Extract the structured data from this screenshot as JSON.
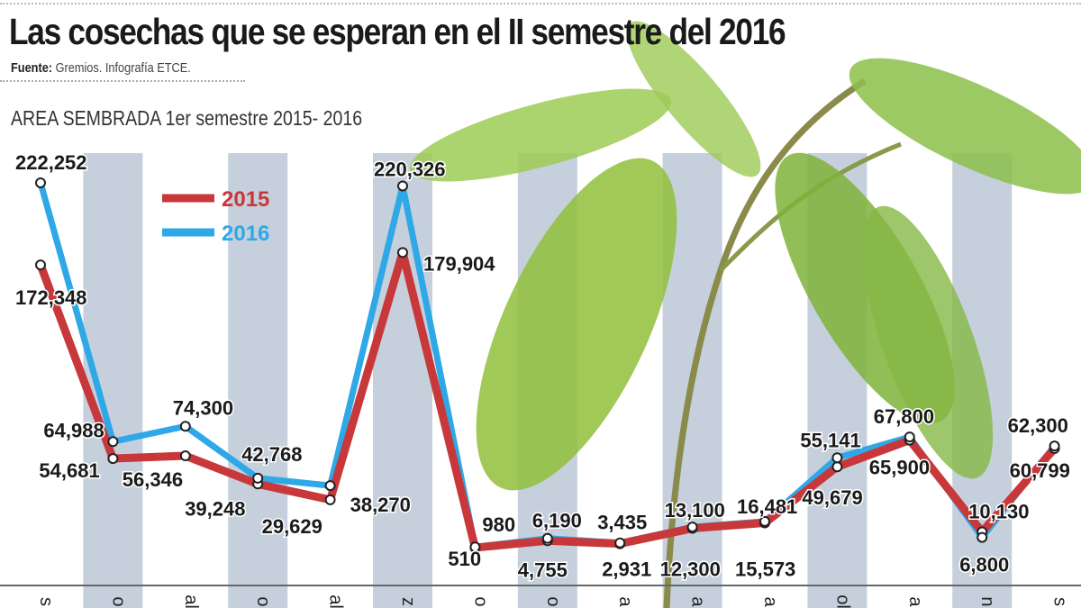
{
  "header": {
    "title": "Las cosechas que se esperan en el II semestre del 2016",
    "source_label": "Fuente:",
    "source_text": "Gremios. Infografía ETCE.",
    "subtitle": "AREA SEMBRADA 1er semestre 2015- 2016"
  },
  "chart_data": {
    "type": "line",
    "title": "AREA SEMBRADA 1er semestre 2015- 2016",
    "xlabel": "",
    "ylabel": "",
    "categories": [
      "s",
      "o",
      "al",
      "o",
      "al",
      "z",
      "o",
      "o",
      "a",
      "a",
      "a",
      "ol",
      "a",
      "n",
      "s"
    ],
    "ylim": [
      0,
      230000
    ],
    "grid": false,
    "legend_position": "top-left",
    "series": [
      {
        "name": "2015",
        "color": "#c8383a",
        "values": [
          172348,
          54681,
          56346,
          39248,
          29629,
          179904,
          510,
          4755,
          2931,
          12300,
          15573,
          49679,
          65900,
          10130,
          60799
        ],
        "labels": [
          "172,348",
          "54,681",
          "56,346",
          "39,248",
          "29,629",
          "179,904",
          "510",
          "4,755",
          "2,931",
          "12,300",
          "15,573",
          "49,679",
          "65,900",
          "10,130",
          "60,799"
        ]
      },
      {
        "name": "2016",
        "color": "#2ea8e6",
        "values": [
          222252,
          64988,
          74300,
          42768,
          38270,
          220326,
          980,
          6190,
          3435,
          13100,
          16481,
          55141,
          67800,
          6800,
          62300
        ],
        "labels": [
          "222,252",
          "64,988",
          "74,300",
          "42,768",
          "38,270",
          "220,326",
          "980",
          "6,190",
          "3,435",
          "13,100",
          "16,481",
          "55,141",
          "67,800",
          "6,800",
          "62,300"
        ]
      }
    ]
  }
}
